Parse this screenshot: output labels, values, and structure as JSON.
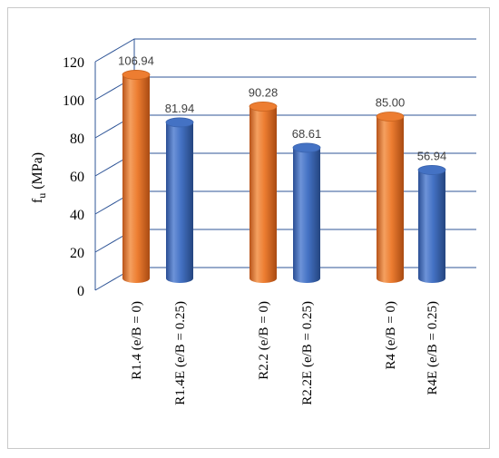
{
  "chart_data": {
    "type": "bar",
    "title": "",
    "ylabel": {
      "main": "f",
      "sub": "u",
      "unit": " (MPa)"
    },
    "xlabel": "",
    "ylim": [
      0,
      120
    ],
    "yticks": [
      "0",
      "20",
      "40",
      "60",
      "80",
      "100",
      "120"
    ],
    "grid": true,
    "legend": "none",
    "categories": [
      "R1.4 (e/B = 0)",
      "R1.4E (e/B = 0.25)",
      "R2.2 (e/B = 0)",
      "R2.2E (e/B = 0.25)",
      "R4 (e/B = 0)",
      "R4E (e/B = 0.25)"
    ],
    "values": [
      106.94,
      81.94,
      90.28,
      68.61,
      85.0,
      56.94
    ],
    "value_labels": [
      "106.94",
      "81.94",
      "90.28",
      "68.61",
      "85.00",
      "56.94"
    ],
    "colors": [
      "#ed7d31",
      "#4472c4",
      "#ed7d31",
      "#4472c4",
      "#ed7d31",
      "#4472c4"
    ]
  }
}
